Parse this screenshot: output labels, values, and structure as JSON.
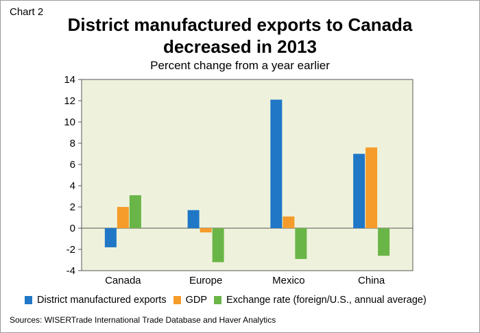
{
  "chart_label": "Chart 2",
  "title_line1": "District manufactured exports to Canada",
  "title_line2": "decreased in 2013",
  "subtitle": "Percent change from a year earlier",
  "source": "Sources: WISERTrade International Trade Database and Haver Analytics",
  "colors": {
    "plot_background": "#eef2dc",
    "district": "#1f77c6",
    "gdp": "#f59c2a",
    "exchange": "#6ab547"
  },
  "chart_data": {
    "type": "bar",
    "categories": [
      "Canada",
      "Europe",
      "Mexico",
      "China"
    ],
    "series": [
      {
        "name": "District manufactured exports",
        "values": [
          -1.8,
          1.7,
          12.1,
          7.0
        ]
      },
      {
        "name": "GDP",
        "values": [
          2.0,
          -0.4,
          1.1,
          7.6
        ]
      },
      {
        "name": "Exchange rate (foreign/U.S., annual average)",
        "values": [
          3.1,
          -3.2,
          -2.9,
          -2.6
        ]
      }
    ],
    "ylim": [
      -4,
      14
    ],
    "yticks": [
      -4,
      -2,
      0,
      2,
      4,
      6,
      8,
      10,
      12,
      14
    ],
    "grid": false,
    "legend": "bottom"
  }
}
